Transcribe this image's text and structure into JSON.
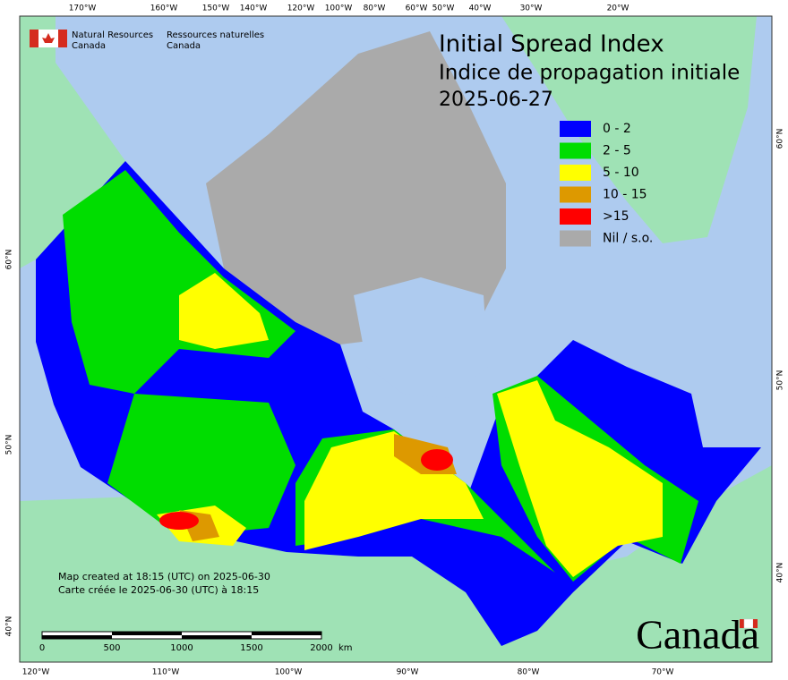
{
  "header": {
    "title": "Initial Spread Index",
    "subtitle": "Indice de propagation initiale",
    "date": "2025-06-27"
  },
  "credits": {
    "english": [
      "Natural Resources",
      "Canada"
    ],
    "french": [
      "Ressources naturelles",
      "Canada"
    ]
  },
  "legend": {
    "items": [
      {
        "label": "0 - 2",
        "color": "#0000ff"
      },
      {
        "label": "2 - 5",
        "color": "#00dd00"
      },
      {
        "label": "5 - 10",
        "color": "#ffff00"
      },
      {
        "label": "10 - 15",
        "color": "#dd9900"
      },
      {
        "label": ">15",
        "color": "#ff0000"
      },
      {
        "label": "Nil / s.o.",
        "color": "#aaaaaa"
      }
    ]
  },
  "graticule": {
    "top": [
      "170°W",
      "160°W",
      "150°W",
      "140°W",
      "120°W",
      "100°W",
      "80°W",
      "60°W",
      "50°W",
      "40°W",
      "30°W",
      "20°W"
    ],
    "bottom": [
      "120°W",
      "110°W",
      "100°W",
      "90°W",
      "80°W",
      "70°W"
    ],
    "left": [
      "60°N",
      "50°N",
      "40°N"
    ],
    "right": [
      "60°N",
      "50°N",
      "40°N"
    ]
  },
  "scale": {
    "labels": [
      "0",
      "500",
      "1000",
      "1500",
      "2000"
    ],
    "unit": "km"
  },
  "notes": [
    "Map created at 18:15 (UTC) on 2025-06-30",
    "Carte créée le 2025-06-30 (UTC) à 18:15"
  ],
  "wordmark": "Canada"
}
